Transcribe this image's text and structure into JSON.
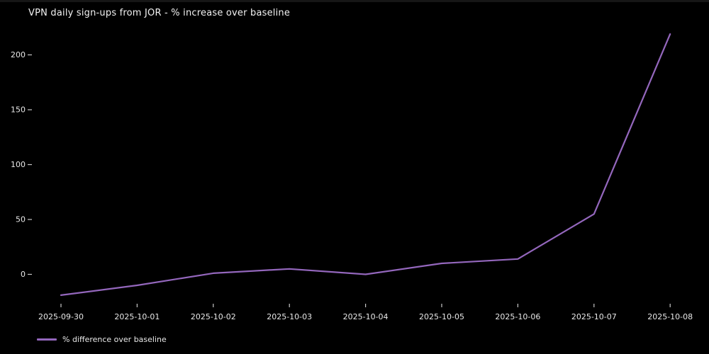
{
  "chart_data": {
    "type": "line",
    "title": "VPN daily sign-ups from JOR - % increase over baseline",
    "categories": [
      "2025-09-30",
      "2025-10-01",
      "2025-10-02",
      "2025-10-03",
      "2025-10-04",
      "2025-10-05",
      "2025-10-06",
      "2025-10-07",
      "2025-10-08"
    ],
    "series": [
      {
        "name": "% difference over baseline",
        "values": [
          -19,
          -10,
          1,
          5,
          0,
          10,
          14,
          55,
          219
        ]
      }
    ],
    "xlabel": "",
    "ylabel": "",
    "yticks": [
      0,
      50,
      100,
      150,
      200
    ],
    "ylim": [
      -27,
      228
    ],
    "grid": false,
    "legend_position": "lower left",
    "colors": {
      "background": "#000000",
      "line": "#9467bd",
      "text": "#e8e8e8",
      "tick": "#c8c8c8",
      "title": "#f2f2f2"
    }
  }
}
